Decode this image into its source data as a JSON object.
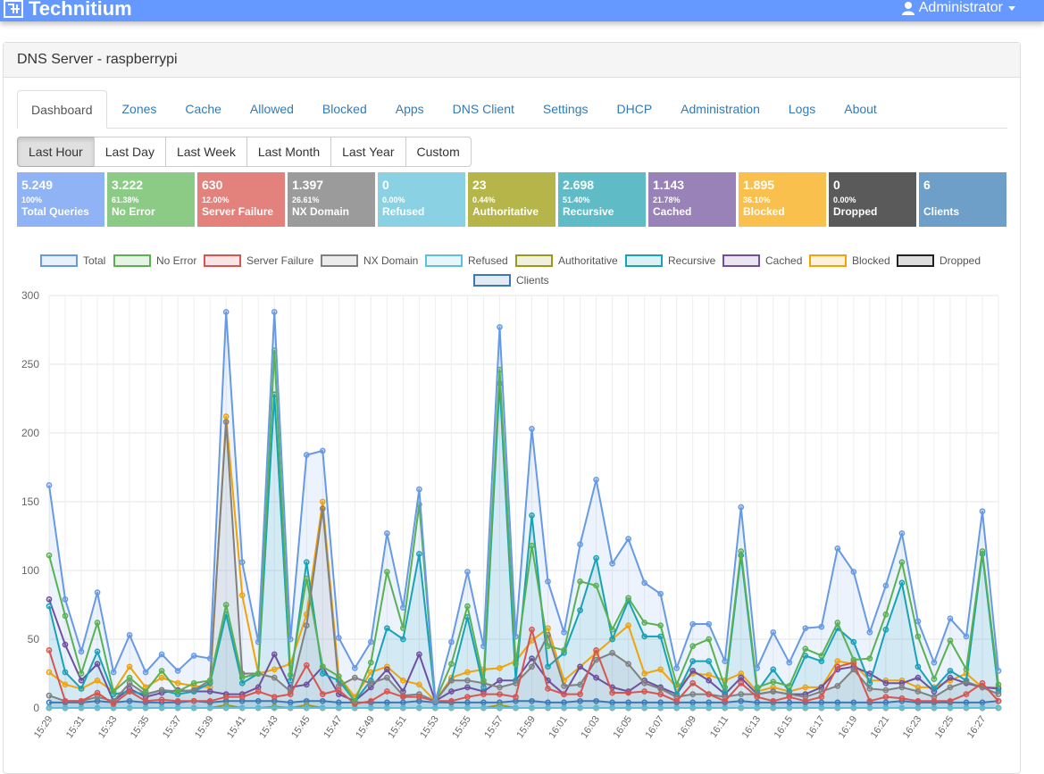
{
  "app": {
    "brand": "Technitium",
    "user": "Administrator"
  },
  "panel": {
    "title": "DNS Server - raspberrypi"
  },
  "tabs": [
    "Dashboard",
    "Zones",
    "Cache",
    "Allowed",
    "Blocked",
    "Apps",
    "DNS Client",
    "Settings",
    "DHCP",
    "Administration",
    "Logs",
    "About"
  ],
  "active_tab": "Dashboard",
  "ranges": [
    "Last Hour",
    "Last Day",
    "Last Week",
    "Last Month",
    "Last Year",
    "Custom"
  ],
  "active_range": "Last Hour",
  "stats": [
    {
      "value": "5.249",
      "percent": "100%",
      "label": "Total Queries",
      "color": "#8fb3f5"
    },
    {
      "value": "3.222",
      "percent": "61.38%",
      "label": "No Error",
      "color": "#8ccb86"
    },
    {
      "value": "630",
      "percent": "12.00%",
      "label": "Server Failure",
      "color": "#e3817c"
    },
    {
      "value": "1.397",
      "percent": "26.61%",
      "label": "NX Domain",
      "color": "#9b9b9b"
    },
    {
      "value": "0",
      "percent": "0.00%",
      "label": "Refused",
      "color": "#8bd1e4"
    },
    {
      "value": "23",
      "percent": "0.44%",
      "label": "Authoritative",
      "color": "#b5b54a"
    },
    {
      "value": "2.698",
      "percent": "51.40%",
      "label": "Recursive",
      "color": "#5fbcc7"
    },
    {
      "value": "1.143",
      "percent": "21.78%",
      "label": "Cached",
      "color": "#9882b8"
    },
    {
      "value": "1.895",
      "percent": "36.10%",
      "label": "Blocked",
      "color": "#f9c04e"
    },
    {
      "value": "0",
      "percent": "0.00%",
      "label": "Dropped",
      "color": "#5a5a5a"
    },
    {
      "value": "6",
      "percent": "",
      "label": "Clients",
      "color": "#6e9fc9"
    }
  ],
  "chart_data": {
    "type": "line",
    "x": [
      "15:29",
      "15:30",
      "15:31",
      "15:32",
      "15:33",
      "15:34",
      "15:35",
      "15:36",
      "15:37",
      "15:38",
      "15:39",
      "15:40",
      "15:41",
      "15:42",
      "15:43",
      "15:44",
      "15:45",
      "15:46",
      "15:47",
      "15:48",
      "15:49",
      "15:50",
      "15:51",
      "15:52",
      "15:53",
      "15:54",
      "15:55",
      "15:56",
      "15:57",
      "15:58",
      "15:59",
      "16:00",
      "16:01",
      "16:02",
      "16:03",
      "16:04",
      "16:05",
      "16:06",
      "16:07",
      "16:08",
      "16:09",
      "16:10",
      "16:11",
      "16:12",
      "16:13",
      "16:14",
      "16:15",
      "16:16",
      "16:17",
      "16:18",
      "16:19",
      "16:20",
      "16:21",
      "16:22",
      "16:23",
      "16:24",
      "16:25",
      "16:26",
      "16:27",
      "16:28"
    ],
    "ylim": [
      0,
      300
    ],
    "yticks": [
      0,
      50,
      100,
      150,
      200,
      250,
      300
    ],
    "grid": true,
    "legend": "top",
    "series": [
      {
        "name": "Total",
        "color": "#6699e6",
        "fill": true,
        "values": [
          162,
          79,
          41,
          84,
          26,
          53,
          26,
          39,
          27,
          38,
          36,
          288,
          106,
          48,
          288,
          50,
          184,
          187,
          51,
          29,
          48,
          127,
          73,
          159,
          5,
          48,
          99,
          45,
          277,
          52,
          203,
          92,
          55,
          119,
          166,
          105,
          123,
          91,
          83,
          29,
          61,
          61,
          34,
          146,
          29,
          55,
          33,
          58,
          59,
          116,
          99,
          55,
          89,
          127,
          63,
          33,
          65,
          52,
          143,
          27
        ]
      },
      {
        "name": "No Error",
        "color": "#59b152",
        "fill": false,
        "values": [
          111,
          67,
          25,
          62,
          12,
          22,
          12,
          27,
          12,
          18,
          20,
          75,
          22,
          25,
          260,
          24,
          94,
          30,
          23,
          5,
          33,
          99,
          58,
          148,
          5,
          32,
          74,
          20,
          246,
          32,
          118,
          45,
          42,
          92,
          89,
          57,
          80,
          62,
          60,
          17,
          45,
          50,
          15,
          114,
          15,
          19,
          16,
          43,
          38,
          62,
          35,
          36,
          68,
          106,
          52,
          21,
          49,
          28,
          114,
          17
        ]
      },
      {
        "name": "Server Failure",
        "color": "#d9534f",
        "fill": false,
        "values": [
          42,
          5,
          5,
          11,
          3,
          12,
          5,
          6,
          5,
          5,
          5,
          8,
          8,
          12,
          8,
          10,
          31,
          10,
          13,
          3,
          5,
          12,
          8,
          8,
          5,
          5,
          8,
          10,
          10,
          8,
          57,
          14,
          10,
          10,
          42,
          11,
          11,
          12,
          10,
          5,
          18,
          10,
          5,
          18,
          8,
          5,
          8,
          5,
          8,
          30,
          33,
          5,
          8,
          7,
          5,
          5,
          5,
          10,
          18,
          5
        ]
      },
      {
        "name": "NX Domain",
        "color": "#808080",
        "fill": true,
        "values": [
          9,
          5,
          5,
          8,
          5,
          18,
          10,
          13,
          12,
          13,
          20,
          208,
          25,
          25,
          22,
          12,
          60,
          145,
          16,
          22,
          18,
          22,
          9,
          10,
          5,
          20,
          20,
          18,
          15,
          18,
          30,
          53,
          16,
          17,
          35,
          40,
          32,
          18,
          14,
          8,
          10,
          10,
          8,
          10,
          10,
          12,
          10,
          8,
          12,
          16,
          28,
          14,
          13,
          15,
          12,
          8,
          15,
          19,
          15,
          10
        ]
      },
      {
        "name": "Refused",
        "color": "#5bc0de",
        "fill": false,
        "values": [
          0,
          0,
          0,
          0,
          0,
          0,
          0,
          0,
          0,
          0,
          0,
          0,
          0,
          0,
          0,
          0,
          0,
          0,
          0,
          0,
          0,
          0,
          0,
          0,
          0,
          0,
          0,
          0,
          0,
          0,
          0,
          0,
          0,
          0,
          0,
          0,
          0,
          0,
          0,
          0,
          0,
          0,
          0,
          0,
          0,
          0,
          0,
          0,
          0,
          0,
          0,
          0,
          0,
          0,
          0,
          0,
          0,
          0,
          0,
          0
        ]
      },
      {
        "name": "Authoritative",
        "color": "#9a9a1a",
        "fill": false,
        "values": [
          0,
          0,
          0,
          0,
          0,
          0,
          0,
          0,
          0,
          0,
          0,
          2,
          0,
          0,
          1,
          0,
          2,
          0,
          0,
          0,
          0,
          0,
          0,
          0,
          0,
          0,
          0,
          0,
          2,
          0,
          0,
          0,
          0,
          0,
          0,
          0,
          0,
          0,
          0,
          0,
          0,
          0,
          0,
          0,
          0,
          0,
          0,
          0,
          0,
          0,
          0,
          0,
          0,
          0,
          0,
          0,
          0,
          0,
          0,
          0
        ]
      },
      {
        "name": "Recursive",
        "color": "#17a2b8",
        "fill": true,
        "values": [
          74,
          26,
          14,
          41,
          10,
          12,
          10,
          13,
          10,
          12,
          18,
          68,
          18,
          25,
          228,
          20,
          106,
          25,
          20,
          5,
          20,
          58,
          50,
          112,
          5,
          20,
          66,
          15,
          236,
          20,
          140,
          30,
          40,
          71,
          109,
          50,
          78,
          52,
          52,
          10,
          34,
          34,
          12,
          111,
          12,
          28,
          12,
          38,
          34,
          58,
          48,
          18,
          57,
          91,
          30,
          14,
          27,
          20,
          112,
          12
        ]
      },
      {
        "name": "Cached",
        "color": "#6f4f9e",
        "fill": false,
        "values": [
          79,
          46,
          20,
          32,
          5,
          14,
          8,
          11,
          13,
          12,
          12,
          10,
          10,
          15,
          39,
          15,
          17,
          30,
          10,
          5,
          15,
          28,
          12,
          39,
          5,
          12,
          15,
          12,
          20,
          20,
          36,
          20,
          10,
          30,
          22,
          15,
          12,
          20,
          15,
          10,
          27,
          20,
          10,
          22,
          10,
          12,
          10,
          10,
          15,
          28,
          30,
          25,
          18,
          18,
          22,
          12,
          22,
          18,
          15,
          14
        ]
      },
      {
        "name": "Blocked",
        "color": "#f0a30a",
        "fill": false,
        "values": [
          26,
          17,
          14,
          20,
          12,
          30,
          15,
          22,
          18,
          16,
          15,
          212,
          82,
          25,
          28,
          32,
          68,
          150,
          23,
          8,
          26,
          30,
          20,
          17,
          5,
          22,
          26,
          28,
          29,
          34,
          49,
          58,
          20,
          30,
          40,
          50,
          60,
          25,
          28,
          15,
          25,
          24,
          20,
          25,
          12,
          15,
          12,
          15,
          15,
          34,
          32,
          20,
          20,
          20,
          15,
          15,
          20,
          25,
          15,
          15
        ]
      },
      {
        "name": "Dropped",
        "color": "#222222",
        "fill": false,
        "values": [
          0,
          0,
          0,
          0,
          0,
          0,
          0,
          0,
          0,
          0,
          0,
          0,
          0,
          0,
          0,
          0,
          0,
          0,
          0,
          0,
          0,
          0,
          0,
          0,
          0,
          0,
          0,
          0,
          0,
          0,
          0,
          0,
          0,
          0,
          0,
          0,
          0,
          0,
          0,
          0,
          0,
          0,
          0,
          0,
          0,
          0,
          0,
          0,
          0,
          0,
          0,
          0,
          0,
          0,
          0,
          0,
          0,
          0,
          0,
          0
        ]
      },
      {
        "name": "Clients",
        "color": "#3a78b8",
        "fill": true,
        "values": [
          4,
          4,
          4,
          5,
          4,
          5,
          4,
          4,
          4,
          5,
          4,
          5,
          5,
          5,
          5,
          4,
          5,
          5,
          4,
          4,
          4,
          4,
          4,
          5,
          4,
          4,
          4,
          4,
          4,
          5,
          5,
          4,
          4,
          5,
          5,
          4,
          4,
          4,
          4,
          4,
          4,
          4,
          4,
          5,
          4,
          4,
          4,
          4,
          4,
          4,
          4,
          4,
          4,
          5,
          4,
          4,
          4,
          4,
          4,
          5
        ]
      }
    ]
  }
}
